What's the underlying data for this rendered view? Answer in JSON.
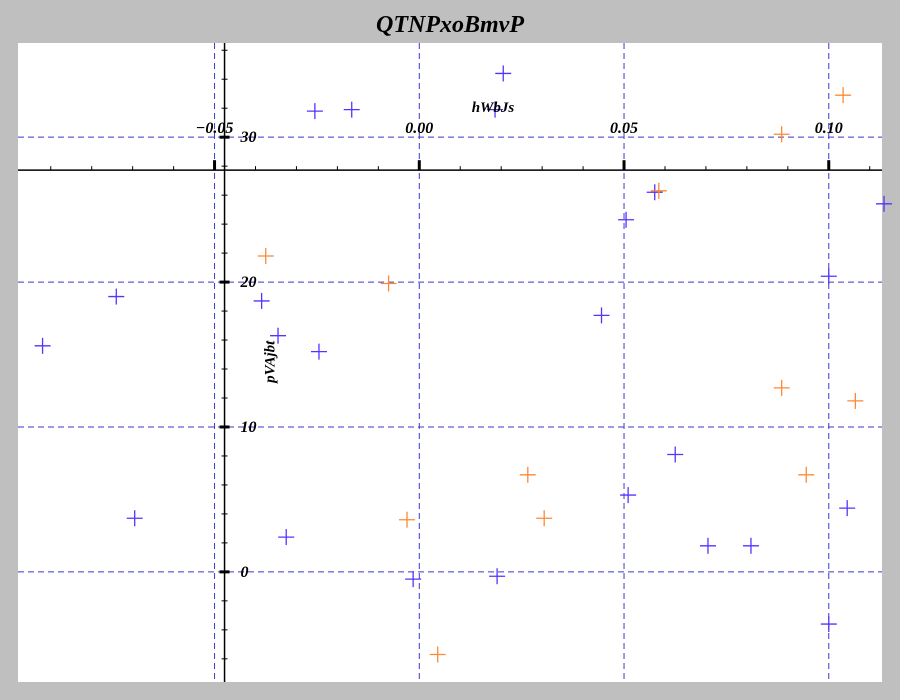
{
  "chart_data": {
    "type": "scatter",
    "title": "QTNPxoBmvP",
    "xlabel": "hWbJs",
    "ylabel": "pVAjbt",
    "xlim": [
      -0.098,
      0.113
    ],
    "ylim": [
      -7.6,
      36.5
    ],
    "xticks": [
      -0.05,
      0.0,
      0.05,
      0.1
    ],
    "xtick_labels": [
      "−0.05",
      "0.00",
      "0.05",
      "0.10"
    ],
    "yticks": [
      0,
      10,
      20,
      30
    ],
    "ytick_labels": [
      "0",
      "10",
      "20",
      "30"
    ],
    "grid": true,
    "marker": "plus",
    "series": [
      {
        "color": "#5533ff",
        "points": [
          [
            -0.0255,
            31.8
          ],
          [
            -0.0165,
            31.9
          ],
          [
            0.0205,
            34.4
          ],
          [
            0.0185,
            31.9
          ],
          [
            0.0505,
            24.3
          ],
          [
            0.0575,
            26.2
          ],
          [
            0.1135,
            25.4
          ],
          [
            0.1,
            20.4
          ],
          [
            -0.074,
            19.0
          ],
          [
            -0.0385,
            18.7
          ],
          [
            -0.0345,
            16.3
          ],
          [
            -0.0245,
            15.2
          ],
          [
            -0.092,
            15.6
          ],
          [
            0.0445,
            17.7
          ],
          [
            0.051,
            5.3
          ],
          [
            0.0625,
            8.1
          ],
          [
            -0.0695,
            3.7
          ],
          [
            -0.0325,
            2.4
          ],
          [
            0.0705,
            1.8
          ],
          [
            0.081,
            1.8
          ],
          [
            0.1045,
            4.4
          ],
          [
            -0.0015,
            -0.5
          ],
          [
            0.019,
            -0.3
          ],
          [
            0.1,
            -3.6
          ]
        ]
      },
      {
        "color": "#ff8833",
        "points": [
          [
            0.1035,
            32.9
          ],
          [
            0.0885,
            30.2
          ],
          [
            0.0585,
            26.3
          ],
          [
            -0.0375,
            21.8
          ],
          [
            -0.0075,
            19.9
          ],
          [
            0.0885,
            12.7
          ],
          [
            0.1065,
            11.8
          ],
          [
            0.0265,
            6.7
          ],
          [
            0.0945,
            6.7
          ],
          [
            0.0305,
            3.7
          ],
          [
            -0.003,
            3.6
          ],
          [
            0.0045,
            -5.7
          ]
        ]
      }
    ]
  }
}
